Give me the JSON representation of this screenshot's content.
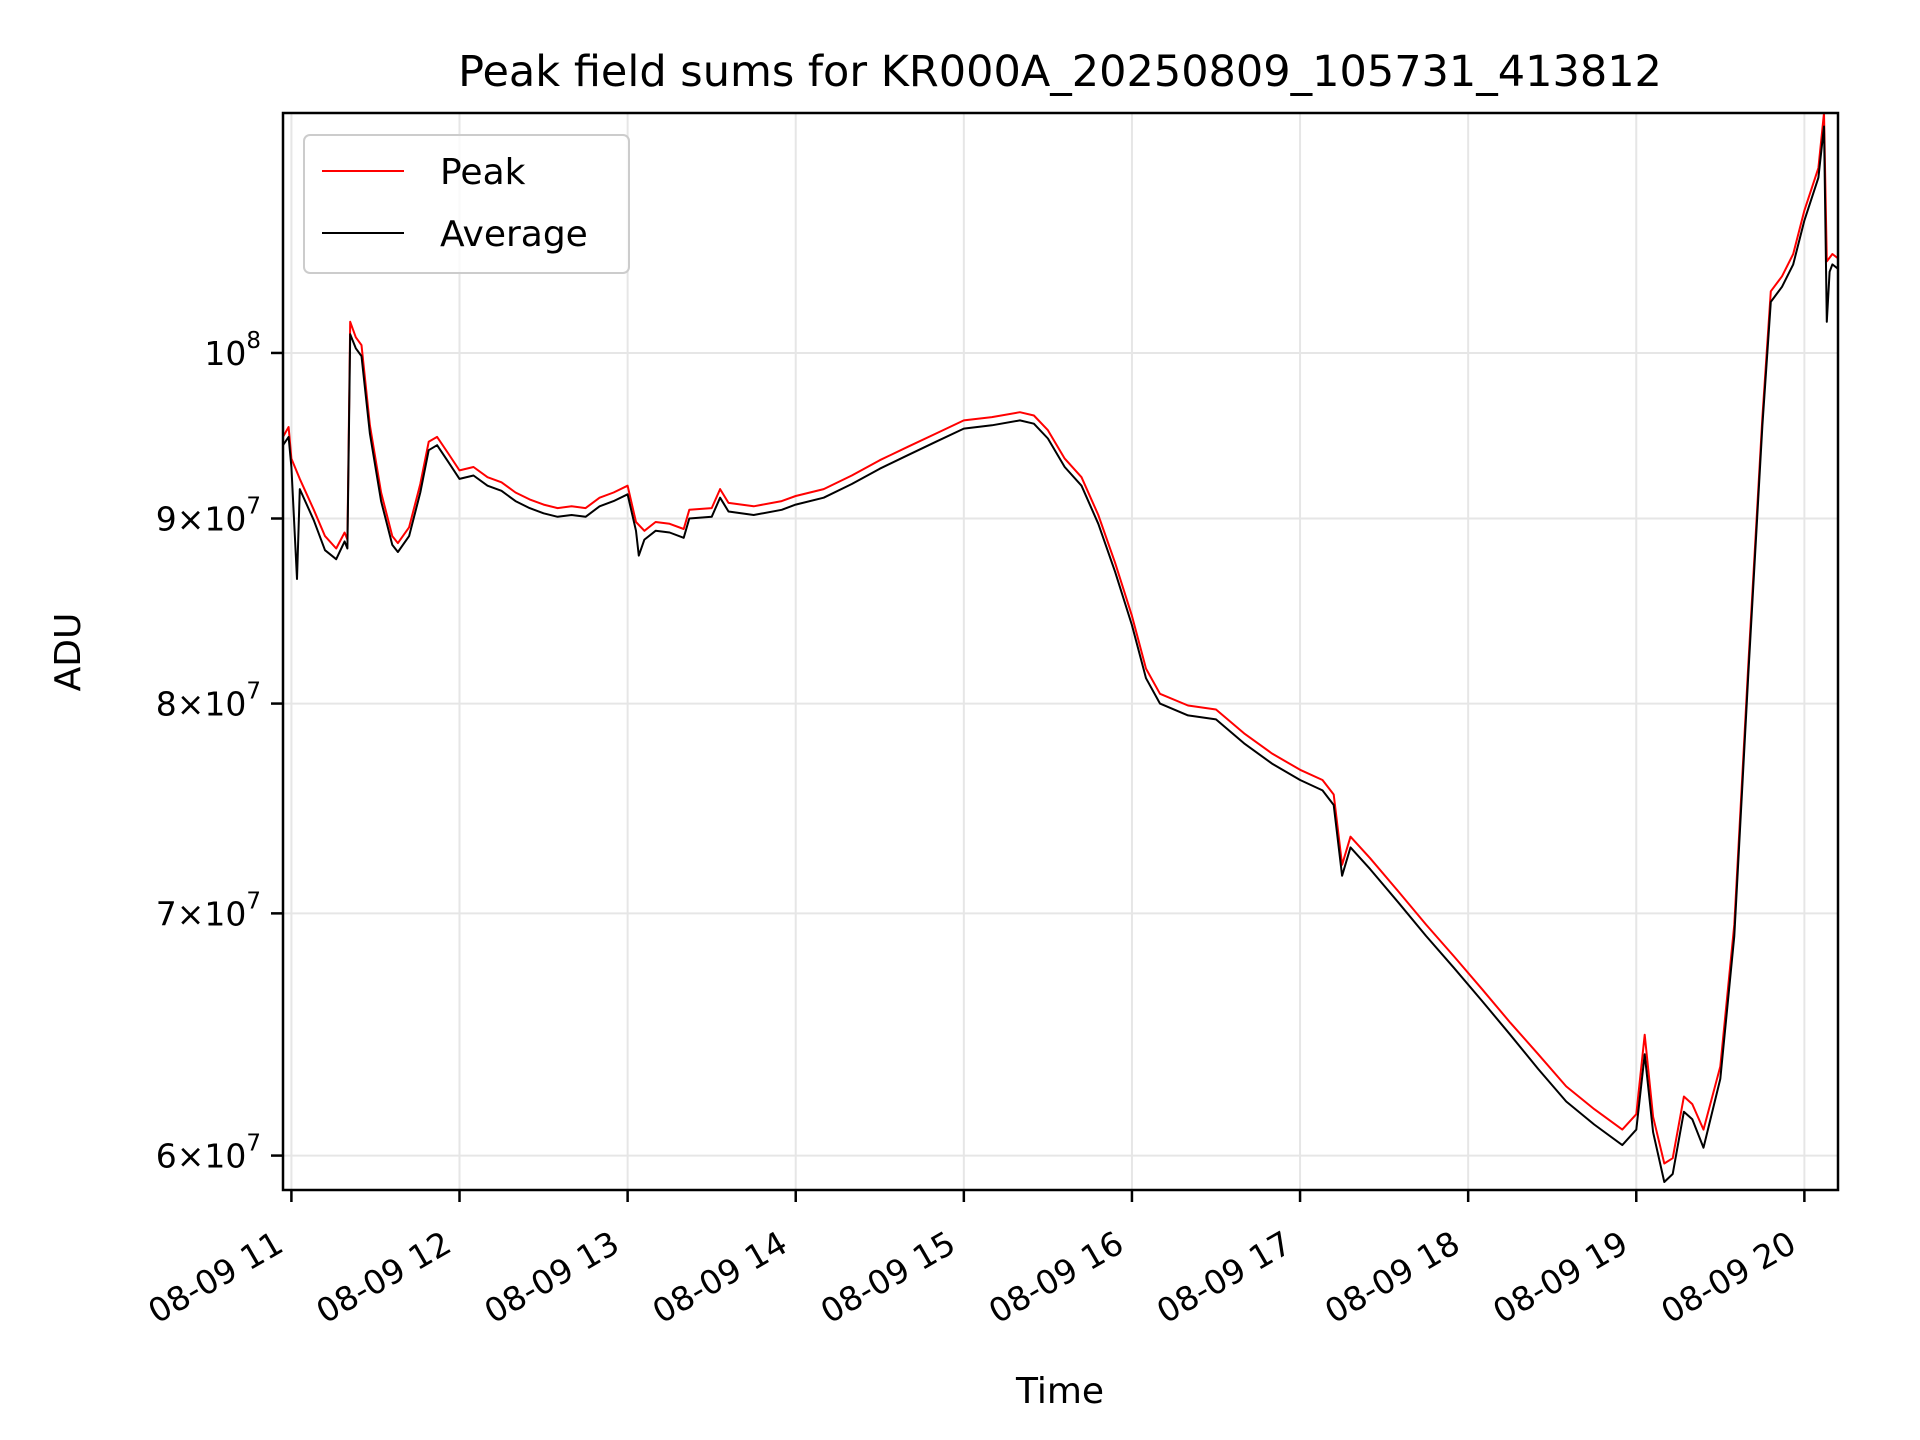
{
  "chart_data": {
    "type": "line",
    "title": "Peak field sums for KR000A_20250809_105731_413812",
    "xlabel": "Time",
    "ylabel": "ADU",
    "yscale": "log",
    "grid": true,
    "legend_position": "top-left",
    "xlim": [
      "2025-08-09 10:57",
      "2025-08-09 20:12"
    ],
    "ylim": [
      58700000,
      116500000
    ],
    "x_ticks": [
      {
        "value": "2025-08-09 11:00",
        "label": "08-09 11"
      },
      {
        "value": "2025-08-09 12:00",
        "label": "08-09 12"
      },
      {
        "value": "2025-08-09 13:00",
        "label": "08-09 13"
      },
      {
        "value": "2025-08-09 14:00",
        "label": "08-09 14"
      },
      {
        "value": "2025-08-09 15:00",
        "label": "08-09 15"
      },
      {
        "value": "2025-08-09 16:00",
        "label": "08-09 16"
      },
      {
        "value": "2025-08-09 17:00",
        "label": "08-09 17"
      },
      {
        "value": "2025-08-09 18:00",
        "label": "08-09 18"
      },
      {
        "value": "2025-08-09 19:00",
        "label": "08-09 19"
      },
      {
        "value": "2025-08-09 20:00",
        "label": "08-09 20"
      }
    ],
    "y_ticks": [
      {
        "value": 60000000,
        "mant": "6",
        "exp": "7",
        "times": true
      },
      {
        "value": 70000000,
        "mant": "7",
        "exp": "7",
        "times": true
      },
      {
        "value": 80000000,
        "mant": "8",
        "exp": "7",
        "times": true
      },
      {
        "value": 90000000,
        "mant": "9",
        "exp": "7",
        "times": true
      },
      {
        "value": 100000000,
        "mant": "",
        "exp": "8",
        "times": false
      }
    ],
    "y_tick_base": "10",
    "series": [
      {
        "name": "Peak",
        "color": "#ff0000",
        "points": [
          [
            "2025-08-09 10:57",
            94800000
          ],
          [
            "2025-08-09 10:59",
            95400000
          ],
          [
            "2025-08-09 11:00",
            93500000
          ],
          [
            "2025-08-09 11:03",
            92300000
          ],
          [
            "2025-08-09 11:08",
            90500000
          ],
          [
            "2025-08-09 11:12",
            89000000
          ],
          [
            "2025-08-09 11:16",
            88300000
          ],
          [
            "2025-08-09 11:19",
            89200000
          ],
          [
            "2025-08-09 11:20",
            88800000
          ],
          [
            "2025-08-09 11:21",
            102000000
          ],
          [
            "2025-08-09 11:23",
            101000000
          ],
          [
            "2025-08-09 11:25",
            100500000
          ],
          [
            "2025-08-09 11:28",
            95500000
          ],
          [
            "2025-08-09 11:32",
            91500000
          ],
          [
            "2025-08-09 11:36",
            89000000
          ],
          [
            "2025-08-09 11:38",
            88600000
          ],
          [
            "2025-08-09 11:42",
            89500000
          ],
          [
            "2025-08-09 11:46",
            92000000
          ],
          [
            "2025-08-09 11:49",
            94500000
          ],
          [
            "2025-08-09 11:52",
            94800000
          ],
          [
            "2025-08-09 11:56",
            93800000
          ],
          [
            "2025-08-09 12:00",
            92800000
          ],
          [
            "2025-08-09 12:05",
            93000000
          ],
          [
            "2025-08-09 12:10",
            92400000
          ],
          [
            "2025-08-09 12:15",
            92100000
          ],
          [
            "2025-08-09 12:20",
            91500000
          ],
          [
            "2025-08-09 12:25",
            91100000
          ],
          [
            "2025-08-09 12:30",
            90800000
          ],
          [
            "2025-08-09 12:35",
            90600000
          ],
          [
            "2025-08-09 12:40",
            90700000
          ],
          [
            "2025-08-09 12:45",
            90600000
          ],
          [
            "2025-08-09 12:50",
            91200000
          ],
          [
            "2025-08-09 12:55",
            91500000
          ],
          [
            "2025-08-09 13:00",
            91900000
          ],
          [
            "2025-08-09 13:03",
            89800000
          ],
          [
            "2025-08-09 13:06",
            89300000
          ],
          [
            "2025-08-09 13:10",
            89800000
          ],
          [
            "2025-08-09 13:15",
            89700000
          ],
          [
            "2025-08-09 13:20",
            89400000
          ],
          [
            "2025-08-09 13:22",
            90500000
          ],
          [
            "2025-08-09 13:30",
            90600000
          ],
          [
            "2025-08-09 13:33",
            91700000
          ],
          [
            "2025-08-09 13:36",
            90900000
          ],
          [
            "2025-08-09 13:45",
            90700000
          ],
          [
            "2025-08-09 13:55",
            91000000
          ],
          [
            "2025-08-09 14:00",
            91300000
          ],
          [
            "2025-08-09 14:10",
            91700000
          ],
          [
            "2025-08-09 14:20",
            92500000
          ],
          [
            "2025-08-09 14:30",
            93400000
          ],
          [
            "2025-08-09 14:40",
            94200000
          ],
          [
            "2025-08-09 14:50",
            95000000
          ],
          [
            "2025-08-09 15:00",
            95800000
          ],
          [
            "2025-08-09 15:10",
            96000000
          ],
          [
            "2025-08-09 15:20",
            96300000
          ],
          [
            "2025-08-09 15:25",
            96100000
          ],
          [
            "2025-08-09 15:30",
            95200000
          ],
          [
            "2025-08-09 15:36",
            93500000
          ],
          [
            "2025-08-09 15:42",
            92400000
          ],
          [
            "2025-08-09 15:48",
            90200000
          ],
          [
            "2025-08-09 15:54",
            87500000
          ],
          [
            "2025-08-09 16:00",
            84600000
          ],
          [
            "2025-08-09 16:05",
            81800000
          ],
          [
            "2025-08-09 16:10",
            80500000
          ],
          [
            "2025-08-09 16:20",
            79900000
          ],
          [
            "2025-08-09 16:30",
            79700000
          ],
          [
            "2025-08-09 16:40",
            78500000
          ],
          [
            "2025-08-09 16:50",
            77500000
          ],
          [
            "2025-08-09 17:00",
            76700000
          ],
          [
            "2025-08-09 17:08",
            76200000
          ],
          [
            "2025-08-09 17:12",
            75500000
          ],
          [
            "2025-08-09 17:15",
            72200000
          ],
          [
            "2025-08-09 17:18",
            73500000
          ],
          [
            "2025-08-09 17:25",
            72500000
          ],
          [
            "2025-08-09 17:35",
            71000000
          ],
          [
            "2025-08-09 17:45",
            69500000
          ],
          [
            "2025-08-09 17:55",
            68100000
          ],
          [
            "2025-08-09 18:05",
            66700000
          ],
          [
            "2025-08-09 18:15",
            65300000
          ],
          [
            "2025-08-09 18:25",
            64000000
          ],
          [
            "2025-08-09 18:35",
            62700000
          ],
          [
            "2025-08-09 18:45",
            61800000
          ],
          [
            "2025-08-09 18:55",
            61000000
          ],
          [
            "2025-08-09 19:00",
            61600000
          ],
          [
            "2025-08-09 19:03",
            64800000
          ],
          [
            "2025-08-09 19:06",
            61500000
          ],
          [
            "2025-08-09 19:10",
            59700000
          ],
          [
            "2025-08-09 19:13",
            59900000
          ],
          [
            "2025-08-09 19:17",
            62300000
          ],
          [
            "2025-08-09 19:20",
            62000000
          ],
          [
            "2025-08-09 19:24",
            61000000
          ],
          [
            "2025-08-09 19:30",
            63500000
          ],
          [
            "2025-08-09 19:35",
            69500000
          ],
          [
            "2025-08-09 19:40",
            82000000
          ],
          [
            "2025-08-09 19:45",
            96000000
          ],
          [
            "2025-08-09 19:48",
            104000000
          ],
          [
            "2025-08-09 19:52",
            105000000
          ],
          [
            "2025-08-09 19:56",
            106500000
          ],
          [
            "2025-08-09 20:00",
            109500000
          ],
          [
            "2025-08-09 20:05",
            112500000
          ],
          [
            "2025-08-09 20:07",
            116500000
          ],
          [
            "2025-08-09 20:08",
            106000000
          ],
          [
            "2025-08-09 20:10",
            106500000
          ],
          [
            "2025-08-09 20:12",
            106200000
          ]
        ]
      },
      {
        "name": "Average",
        "color": "#000000",
        "points": [
          [
            "2025-08-09 10:57",
            94300000
          ],
          [
            "2025-08-09 10:59",
            94800000
          ],
          [
            "2025-08-09 11:00",
            93000000
          ],
          [
            "2025-08-09 11:02",
            86600000
          ],
          [
            "2025-08-09 11:03",
            91700000
          ],
          [
            "2025-08-09 11:08",
            89900000
          ],
          [
            "2025-08-09 11:12",
            88200000
          ],
          [
            "2025-08-09 11:16",
            87700000
          ],
          [
            "2025-08-09 11:19",
            88700000
          ],
          [
            "2025-08-09 11:20",
            88300000
          ],
          [
            "2025-08-09 11:21",
            101200000
          ],
          [
            "2025-08-09 11:23",
            100300000
          ],
          [
            "2025-08-09 11:25",
            99800000
          ],
          [
            "2025-08-09 11:28",
            95000000
          ],
          [
            "2025-08-09 11:32",
            91000000
          ],
          [
            "2025-08-09 11:36",
            88500000
          ],
          [
            "2025-08-09 11:38",
            88100000
          ],
          [
            "2025-08-09 11:42",
            89000000
          ],
          [
            "2025-08-09 11:46",
            91500000
          ],
          [
            "2025-08-09 11:49",
            94000000
          ],
          [
            "2025-08-09 11:52",
            94300000
          ],
          [
            "2025-08-09 11:56",
            93300000
          ],
          [
            "2025-08-09 12:00",
            92300000
          ],
          [
            "2025-08-09 12:05",
            92500000
          ],
          [
            "2025-08-09 12:10",
            91900000
          ],
          [
            "2025-08-09 12:15",
            91600000
          ],
          [
            "2025-08-09 12:20",
            91000000
          ],
          [
            "2025-08-09 12:25",
            90600000
          ],
          [
            "2025-08-09 12:30",
            90300000
          ],
          [
            "2025-08-09 12:35",
            90100000
          ],
          [
            "2025-08-09 12:40",
            90200000
          ],
          [
            "2025-08-09 12:45",
            90100000
          ],
          [
            "2025-08-09 12:50",
            90700000
          ],
          [
            "2025-08-09 12:55",
            91000000
          ],
          [
            "2025-08-09 13:00",
            91400000
          ],
          [
            "2025-08-09 13:03",
            89300000
          ],
          [
            "2025-08-09 13:04",
            87900000
          ],
          [
            "2025-08-09 13:06",
            88800000
          ],
          [
            "2025-08-09 13:10",
            89300000
          ],
          [
            "2025-08-09 13:15",
            89200000
          ],
          [
            "2025-08-09 13:20",
            88900000
          ],
          [
            "2025-08-09 13:22",
            90000000
          ],
          [
            "2025-08-09 13:30",
            90100000
          ],
          [
            "2025-08-09 13:33",
            91200000
          ],
          [
            "2025-08-09 13:36",
            90400000
          ],
          [
            "2025-08-09 13:45",
            90200000
          ],
          [
            "2025-08-09 13:55",
            90500000
          ],
          [
            "2025-08-09 14:00",
            90800000
          ],
          [
            "2025-08-09 14:10",
            91200000
          ],
          [
            "2025-08-09 14:20",
            92000000
          ],
          [
            "2025-08-09 14:30",
            92900000
          ],
          [
            "2025-08-09 14:40",
            93700000
          ],
          [
            "2025-08-09 14:50",
            94500000
          ],
          [
            "2025-08-09 15:00",
            95300000
          ],
          [
            "2025-08-09 15:10",
            95500000
          ],
          [
            "2025-08-09 15:20",
            95800000
          ],
          [
            "2025-08-09 15:25",
            95600000
          ],
          [
            "2025-08-09 15:30",
            94700000
          ],
          [
            "2025-08-09 15:36",
            93000000
          ],
          [
            "2025-08-09 15:42",
            91900000
          ],
          [
            "2025-08-09 15:48",
            89700000
          ],
          [
            "2025-08-09 15:54",
            87000000
          ],
          [
            "2025-08-09 16:00",
            84100000
          ],
          [
            "2025-08-09 16:05",
            81300000
          ],
          [
            "2025-08-09 16:10",
            80000000
          ],
          [
            "2025-08-09 16:20",
            79400000
          ],
          [
            "2025-08-09 16:30",
            79200000
          ],
          [
            "2025-08-09 16:40",
            78000000
          ],
          [
            "2025-08-09 16:50",
            77000000
          ],
          [
            "2025-08-09 17:00",
            76200000
          ],
          [
            "2025-08-09 17:08",
            75700000
          ],
          [
            "2025-08-09 17:12",
            75000000
          ],
          [
            "2025-08-09 17:15",
            71700000
          ],
          [
            "2025-08-09 17:18",
            73000000
          ],
          [
            "2025-08-09 17:25",
            72000000
          ],
          [
            "2025-08-09 17:35",
            70500000
          ],
          [
            "2025-08-09 17:45",
            69000000
          ],
          [
            "2025-08-09 17:55",
            67600000
          ],
          [
            "2025-08-09 18:05",
            66200000
          ],
          [
            "2025-08-09 18:15",
            64800000
          ],
          [
            "2025-08-09 18:25",
            63400000
          ],
          [
            "2025-08-09 18:35",
            62100000
          ],
          [
            "2025-08-09 18:45",
            61200000
          ],
          [
            "2025-08-09 18:55",
            60400000
          ],
          [
            "2025-08-09 19:00",
            61000000
          ],
          [
            "2025-08-09 19:03",
            64000000
          ],
          [
            "2025-08-09 19:06",
            60900000
          ],
          [
            "2025-08-09 19:10",
            59000000
          ],
          [
            "2025-08-09 19:13",
            59300000
          ],
          [
            "2025-08-09 19:17",
            61700000
          ],
          [
            "2025-08-09 19:20",
            61400000
          ],
          [
            "2025-08-09 19:24",
            60300000
          ],
          [
            "2025-08-09 19:30",
            63000000
          ],
          [
            "2025-08-09 19:35",
            69000000
          ],
          [
            "2025-08-09 19:40",
            81500000
          ],
          [
            "2025-08-09 19:45",
            95500000
          ],
          [
            "2025-08-09 19:48",
            103300000
          ],
          [
            "2025-08-09 19:52",
            104300000
          ],
          [
            "2025-08-09 19:56",
            105800000
          ],
          [
            "2025-08-09 20:00",
            108800000
          ],
          [
            "2025-08-09 20:05",
            111800000
          ],
          [
            "2025-08-09 20:07",
            115500000
          ],
          [
            "2025-08-09 20:08",
            102000000
          ],
          [
            "2025-08-09 20:09",
            105300000
          ],
          [
            "2025-08-09 20:10",
            105800000
          ],
          [
            "2025-08-09 20:12",
            105500000
          ]
        ]
      }
    ]
  }
}
